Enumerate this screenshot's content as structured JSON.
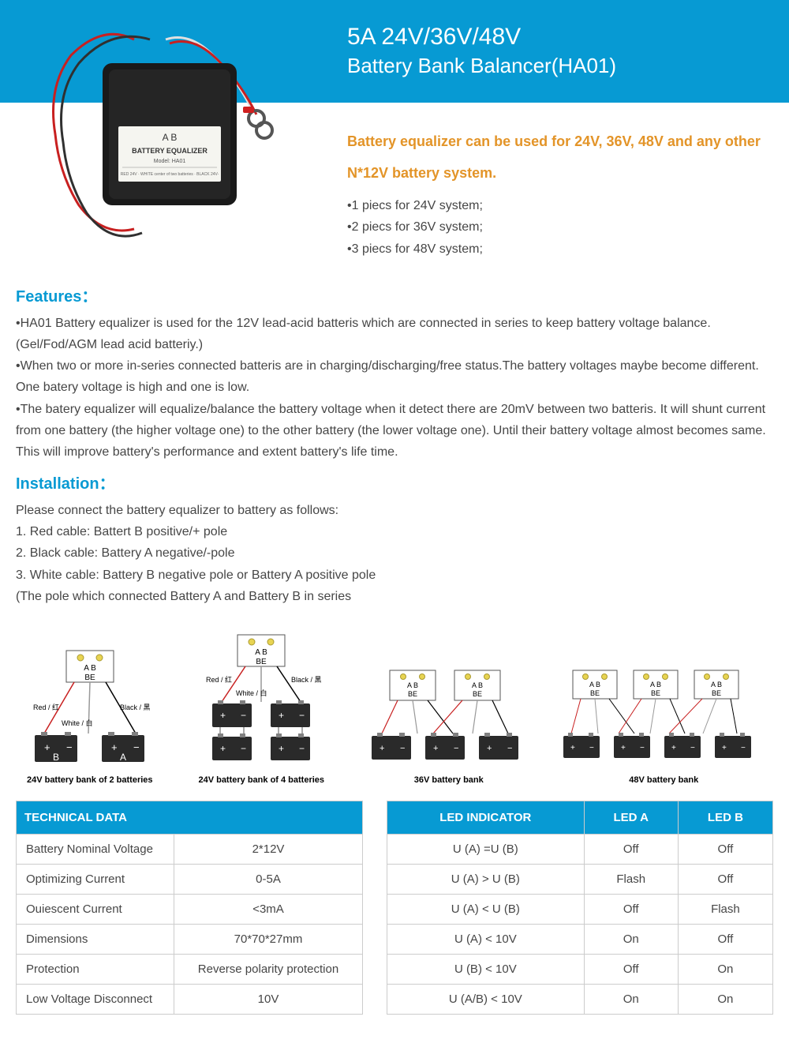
{
  "header": {
    "title": "5A  24V/36V/48V",
    "subtitle": "Battery Bank Balancer(HA01)"
  },
  "intro": {
    "orange_text": "Battery equalizer can be used for 24V, 36V, 48V and any other N*12V battery system.",
    "pieces": [
      "•1 piecs for 24V system;",
      "•2 piecs for 36V system;",
      "•3 piecs for 48V system;"
    ]
  },
  "product_label": {
    "letters": "A    B",
    "name": "BATTERY EQUALIZER",
    "model": "Model: HA01"
  },
  "features": {
    "title": "Features：",
    "text": "•HA01 Battery equalizer is used for the 12V lead-acid batteris which are connected in series to keep battery voltage balance. (Gel/Fod/AGM lead acid batteriy.)\n•When two or more in-series connected batteris are in charging/discharging/free status.The battery voltages maybe become different. One batery voltage is high and one is low.\n•The batery equalizer will equalize/balance the battery voltage when it detect there are 20mV between two batteris. It will shunt current from one battery (the higher voltage one) to the other battery (the lower voltage one). Until their battery voltage almost becomes same. This will improve battery's performance and extent battery's life time."
  },
  "installation": {
    "title": "Installation：",
    "text": "Please connect the battery equalizer to battery as follows:\n1. Red cable: Battert B positive/+ pole\n2. Black cable: Battery A negative/-pole\n3. White cable: Battery B negative pole or Battery A positive pole\n(The pole which connected Battery A and Battery B in series"
  },
  "diagrams": {
    "labels": {
      "red": "Red / 红",
      "black": "Black / 黑",
      "white": "White / 白",
      "ab": "A    B",
      "be": "BE"
    },
    "captions": [
      "24V battery bank of 2 batteries",
      "24V battery bank of 4 batteries",
      "36V battery bank",
      "48V battery bank"
    ]
  },
  "tech_table": {
    "header": "TECHNICAL DATA",
    "rows": [
      [
        "Battery Nominal Voltage",
        "2*12V"
      ],
      [
        "Optimizing Current",
        "0-5A"
      ],
      [
        "Ouiescent Current",
        "<3mA"
      ],
      [
        "Dimensions",
        "70*70*27mm"
      ],
      [
        "Protection",
        "Reverse polarity protection"
      ],
      [
        "Low Voltage Disconnect",
        "10V"
      ]
    ]
  },
  "led_table": {
    "headers": [
      "LED INDICATOR",
      "LED  A",
      "LED  B"
    ],
    "rows": [
      [
        "U (A)  =U (B)",
        "Off",
        "Off"
      ],
      [
        "U (A) > U (B)",
        "Flash",
        "Off"
      ],
      [
        "U (A) < U (B)",
        "Off",
        "Flash"
      ],
      [
        "U (A) < 10V",
        "On",
        "Off"
      ],
      [
        "U (B) < 10V",
        "Off",
        "On"
      ],
      [
        "U (A/B) < 10V",
        "On",
        "On"
      ]
    ]
  },
  "colors": {
    "blue": "#079ad3",
    "orange": "#e39428",
    "text": "#464646",
    "border": "#cccccc"
  }
}
